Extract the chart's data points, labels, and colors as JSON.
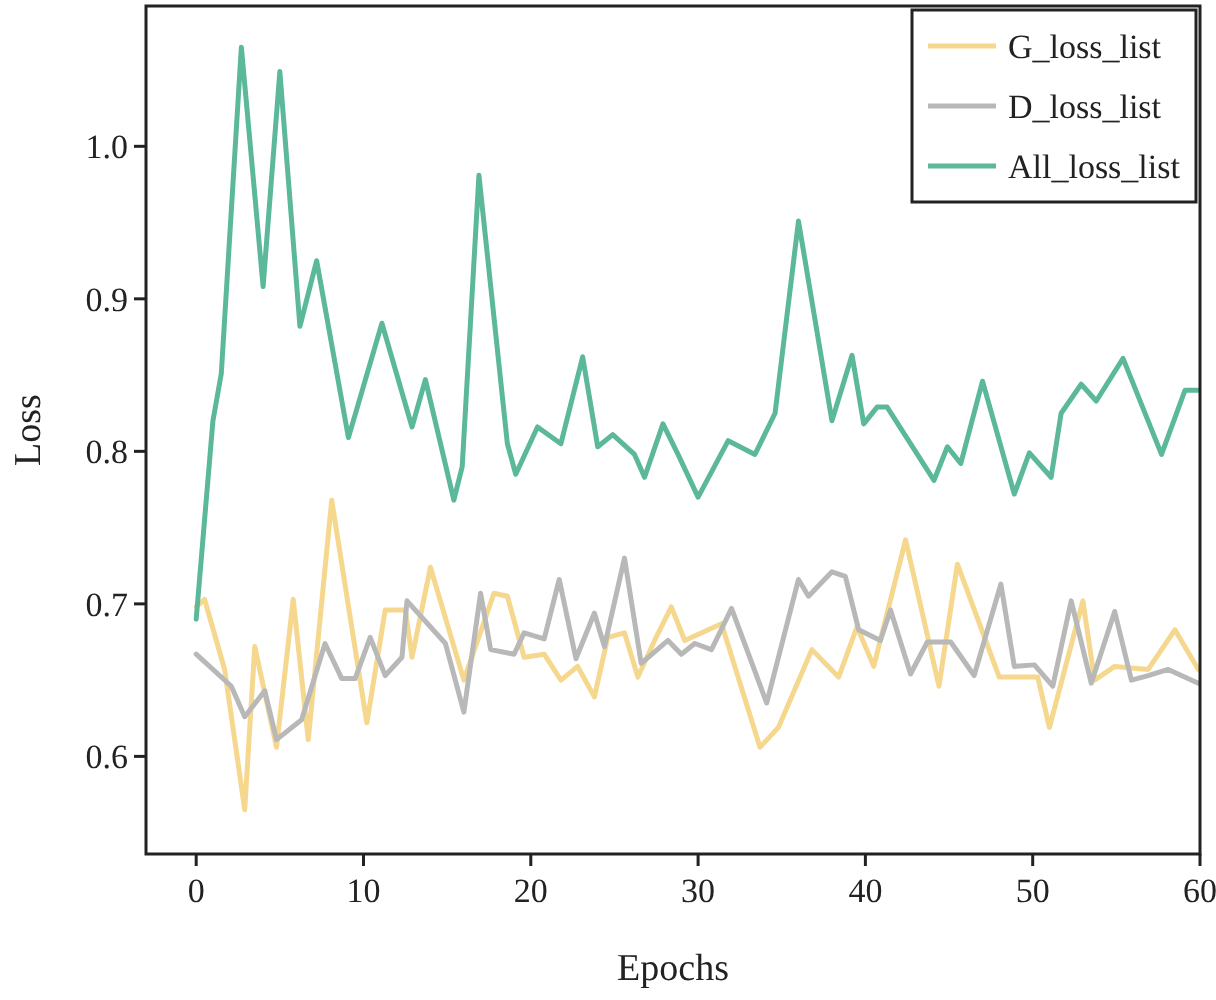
{
  "chart_data": {
    "type": "line",
    "xlabel": "Epochs",
    "ylabel": "Loss",
    "xlim": [
      -3,
      60
    ],
    "xticks": [
      0,
      10,
      20,
      30,
      40,
      50,
      60
    ],
    "ylim": [
      0.536,
      1.092
    ],
    "yticks": [
      0.6,
      0.7,
      0.8,
      0.9,
      {
        "value": 1,
        "label": "1.0"
      }
    ],
    "grid": false,
    "legend": "top right",
    "marker": "none",
    "line_style": "solid",
    "series": [
      {
        "name": "G_loss_list",
        "color": "#f5d78e",
        "x": [
          0,
          0.5,
          1.7,
          2.9,
          3.5,
          4.8,
          5.8,
          6.7,
          8.1,
          10.2,
          11.3,
          12.5,
          12.9,
          14,
          16,
          17.8,
          18.6,
          19.6,
          20.8,
          21.8,
          22.8,
          23.8,
          24.6,
          25.6,
          26.4,
          27.4,
          28.4,
          29.2,
          31.4,
          33.7,
          34.8,
          36.8,
          38.4,
          39.5,
          40.5,
          42.4,
          44.4,
          45.5,
          48,
          50.3,
          51,
          53,
          53.7,
          54.9,
          56.9,
          58.5,
          59.9
        ],
        "values": [
          0.698,
          0.703,
          0.657,
          0.565,
          0.672,
          0.606,
          0.703,
          0.611,
          0.768,
          0.622,
          0.696,
          0.696,
          0.665,
          0.724,
          0.65,
          0.707,
          0.705,
          0.665,
          0.667,
          0.65,
          0.659,
          0.639,
          0.678,
          0.681,
          0.652,
          0.676,
          0.698,
          0.676,
          0.687,
          0.606,
          0.619,
          0.67,
          0.652,
          0.685,
          0.659,
          0.742,
          0.646,
          0.726,
          0.652,
          0.652,
          0.619,
          0.702,
          0.65,
          0.659,
          0.657,
          0.683,
          0.657
        ]
      },
      {
        "name": "D_loss_list",
        "color": "#b8b8b8",
        "x": [
          0,
          2.1,
          2.9,
          4.1,
          4.8,
          6.3,
          7.7,
          8.7,
          9.5,
          10.4,
          11.3,
          12.3,
          12.6,
          14.9,
          16,
          17,
          17.6,
          19,
          19.6,
          20.8,
          21.7,
          22.7,
          23.8,
          24.4,
          25.6,
          26.6,
          28.2,
          29,
          29.8,
          30.8,
          32,
          34.1,
          36,
          36.6,
          38,
          38.8,
          39.6,
          40.9,
          41.5,
          42.7,
          43.7,
          45.1,
          46.5,
          48.1,
          48.9,
          50.1,
          51.2,
          52.3,
          53.5,
          54.9,
          55.9,
          56.9,
          58.1,
          59.9
        ],
        "values": [
          0.667,
          0.646,
          0.626,
          0.643,
          0.611,
          0.624,
          0.674,
          0.651,
          0.651,
          0.678,
          0.653,
          0.665,
          0.702,
          0.674,
          0.629,
          0.707,
          0.67,
          0.667,
          0.681,
          0.677,
          0.716,
          0.664,
          0.694,
          0.672,
          0.73,
          0.661,
          0.676,
          0.667,
          0.674,
          0.67,
          0.697,
          0.635,
          0.716,
          0.705,
          0.721,
          0.718,
          0.683,
          0.676,
          0.696,
          0.654,
          0.675,
          0.675,
          0.653,
          0.713,
          0.659,
          0.66,
          0.646,
          0.702,
          0.648,
          0.695,
          0.65,
          0.653,
          0.657,
          0.648
        ]
      },
      {
        "name": "All_loss_list",
        "color": "#5bb89a",
        "x": [
          0,
          1,
          1.5,
          2.7,
          4,
          5,
          6.2,
          7.2,
          9.1,
          11.1,
          12.9,
          13.7,
          15.4,
          15.9,
          16.9,
          18.6,
          19.1,
          20.4,
          21.8,
          23.1,
          24,
          24.9,
          26.2,
          26.8,
          27.9,
          28.8,
          30,
          31.8,
          33.4,
          34.6,
          36,
          38,
          39.2,
          39.9,
          40.7,
          41.3,
          44.1,
          44.9,
          45.7,
          47,
          48.9,
          49.8,
          51.1,
          51.7,
          52.9,
          53.8,
          55.4,
          57.7,
          59.1,
          59.9
        ],
        "values": [
          0.69,
          0.82,
          0.851,
          1.065,
          0.908,
          1.049,
          0.882,
          0.925,
          0.809,
          0.884,
          0.816,
          0.847,
          0.768,
          0.79,
          0.981,
          0.805,
          0.785,
          0.816,
          0.805,
          0.862,
          0.803,
          0.811,
          0.798,
          0.783,
          0.818,
          0.798,
          0.77,
          0.807,
          0.798,
          0.825,
          0.951,
          0.82,
          0.863,
          0.818,
          0.829,
          0.829,
          0.781,
          0.803,
          0.792,
          0.846,
          0.772,
          0.799,
          0.783,
          0.825,
          0.844,
          0.833,
          0.861,
          0.798,
          0.84,
          0.84
        ]
      }
    ]
  }
}
